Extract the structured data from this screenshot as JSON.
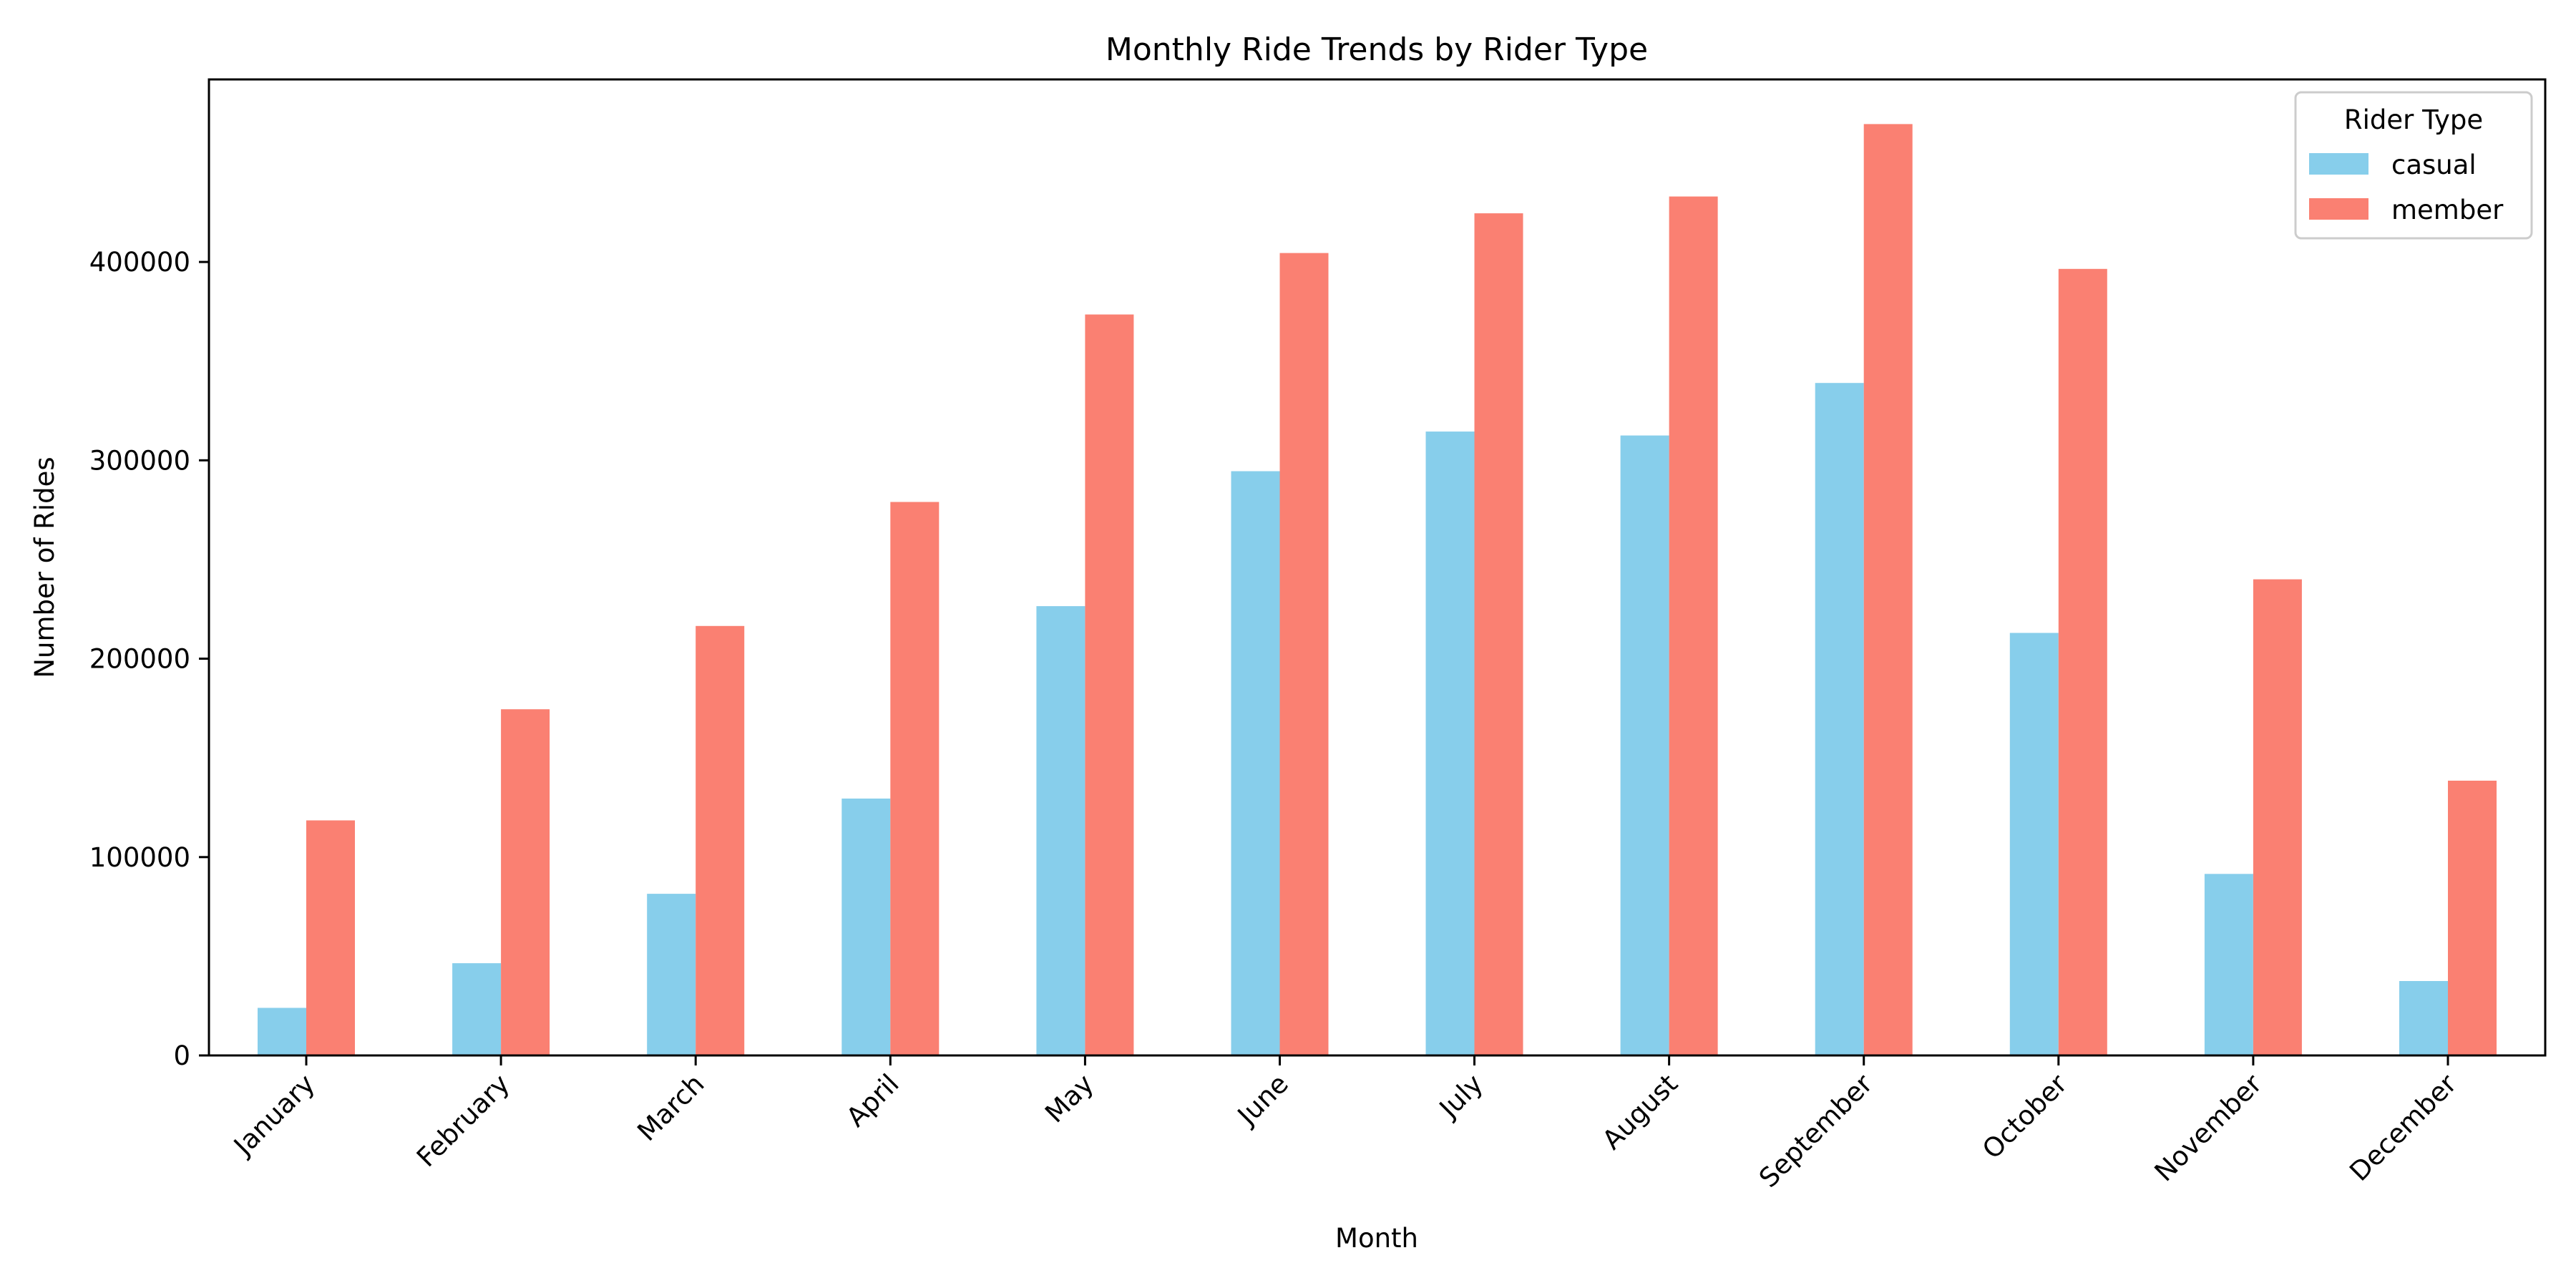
{
  "chart_data": {
    "type": "bar",
    "title": "Monthly Ride Trends by Rider Type",
    "xlabel": "Month",
    "ylabel": "Number of Rides",
    "categories": [
      "January",
      "February",
      "March",
      "April",
      "May",
      "June",
      "July",
      "August",
      "September",
      "October",
      "November",
      "December"
    ],
    "series": [
      {
        "name": "casual",
        "color": "#87CEEB",
        "values": [
          24000,
          46500,
          81500,
          129500,
          226500,
          294500,
          314500,
          312500,
          339000,
          213000,
          91500,
          37500
        ]
      },
      {
        "name": "member",
        "color": "#FA8072",
        "values": [
          118500,
          174500,
          216500,
          279000,
          373500,
          404500,
          424500,
          433000,
          469500,
          396500,
          240000,
          138500
        ]
      }
    ],
    "ylim": [
      0,
      492000
    ],
    "yticks": [
      0,
      100000,
      200000,
      300000,
      400000
    ],
    "ytick_labels": [
      "0",
      "100000",
      "200000",
      "300000",
      "400000"
    ],
    "grid": false,
    "legend": {
      "title": "Rider Type",
      "placement": "top-right"
    }
  }
}
